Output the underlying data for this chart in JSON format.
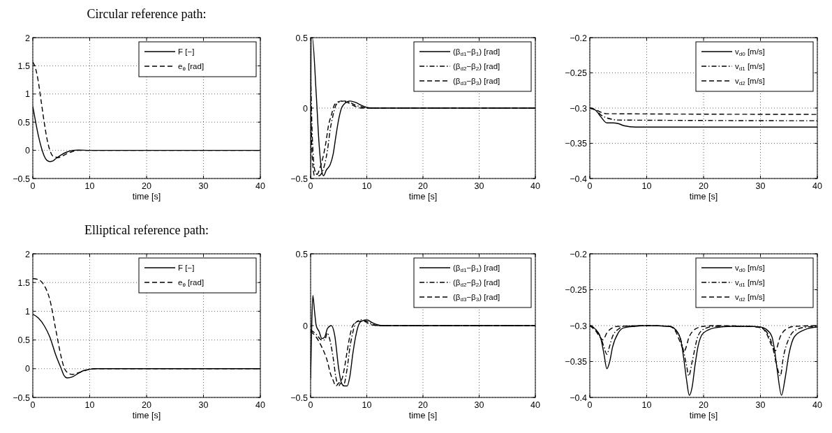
{
  "chart_data": [
    {
      "type": "line",
      "title": "Circular reference path:",
      "xlabel": "time [s]",
      "xlim": [
        0,
        40
      ],
      "xticks": [
        0,
        10,
        20,
        30,
        40
      ],
      "ylim": [
        -0.5,
        2
      ],
      "yticks": [
        -0.5,
        0,
        0.5,
        1,
        1.5,
        2
      ],
      "grid": true,
      "legend": "top right",
      "series": [
        {
          "name": "F [−]",
          "color": "#000000",
          "line_style": "solid",
          "x": [
            0,
            0.5,
            1,
            1.5,
            2,
            2.5,
            3,
            3.5,
            4,
            5,
            6,
            7,
            8,
            10,
            40
          ],
          "values": [
            0.78,
            0.5,
            0.25,
            0.05,
            -0.1,
            -0.18,
            -0.2,
            -0.19,
            -0.15,
            -0.08,
            -0.03,
            0,
            0.005,
            0,
            0
          ]
        },
        {
          "name": "e$_{θ}$ [rad]",
          "color": "#000000",
          "line_style": "dashed",
          "x": [
            0,
            0.5,
            1,
            1.5,
            2,
            2.5,
            3,
            3.5,
            4,
            4.5,
            5,
            6,
            7,
            8,
            40
          ],
          "values": [
            1.57,
            1.45,
            1.2,
            0.85,
            0.5,
            0.2,
            0,
            -0.1,
            -0.12,
            -0.13,
            -0.11,
            -0.06,
            -0.02,
            0,
            0
          ]
        }
      ]
    },
    {
      "type": "line",
      "xlabel": "time [s]",
      "xlim": [
        0,
        40
      ],
      "xticks": [
        0,
        10,
        20,
        30,
        40
      ],
      "ylim": [
        -0.5,
        0.5
      ],
      "yticks": [
        -0.5,
        0,
        0.5
      ],
      "grid": true,
      "legend": "top right",
      "series": [
        {
          "name": "(β$_{d1}$−β$_{1}$) [rad]",
          "color": "#000000",
          "line_style": "solid",
          "x": [
            0,
            0.1,
            0.3,
            1,
            1.5,
            2,
            2.3,
            2.8,
            3.5,
            4,
            4.5,
            5,
            5.5,
            6,
            7,
            8,
            9,
            10,
            11,
            40
          ],
          "values": [
            -0.5,
            0.5,
            0.5,
            0.1,
            -0.25,
            -0.45,
            -0.48,
            -0.44,
            -0.4,
            -0.33,
            -0.2,
            -0.08,
            0,
            0.03,
            0.05,
            0.04,
            0.02,
            0.005,
            0,
            0
          ]
        },
        {
          "name": "(β$_{d2}$−β$_{2}$) [rad]",
          "color": "#000000",
          "line_style": "dashdot",
          "x": [
            0,
            0.3,
            0.8,
            1.5,
            2,
            2.5,
            3,
            3.5,
            4,
            4.5,
            5,
            6,
            7,
            8,
            9,
            10,
            40
          ],
          "values": [
            0.3,
            -0.2,
            -0.45,
            -0.48,
            -0.46,
            -0.4,
            -0.3,
            -0.15,
            -0.05,
            0.02,
            0.04,
            0.05,
            0.04,
            0.02,
            0.01,
            0,
            0
          ]
        },
        {
          "name": "(β$_{d3}$−β$_{3}$) [rad]",
          "color": "#000000",
          "line_style": "dashed",
          "x": [
            0,
            0.3,
            0.7,
            1.2,
            1.7,
            2.2,
            2.7,
            3.2,
            3.7,
            4.2,
            4.7,
            5.5,
            6.5,
            7.5,
            9,
            40
          ],
          "values": [
            0.1,
            -0.35,
            -0.48,
            -0.47,
            -0.42,
            -0.35,
            -0.25,
            -0.12,
            -0.05,
            0.02,
            0.04,
            0.05,
            0.04,
            0.02,
            0,
            0
          ]
        }
      ]
    },
    {
      "type": "line",
      "xlabel": "time [s]",
      "xlim": [
        0,
        40
      ],
      "xticks": [
        0,
        10,
        20,
        30,
        40
      ],
      "ylim": [
        -0.4,
        -0.2
      ],
      "yticks": [
        -0.4,
        -0.35,
        -0.3,
        -0.25,
        -0.2
      ],
      "grid": true,
      "legend": "top right",
      "series": [
        {
          "name": "v$_{d0}$ [m/s]",
          "color": "#000000",
          "line_style": "solid",
          "x": [
            0,
            1,
            2,
            3,
            4,
            5,
            6,
            8,
            40
          ],
          "values": [
            -0.3,
            -0.303,
            -0.313,
            -0.321,
            -0.321,
            -0.322,
            -0.325,
            -0.327,
            -0.327
          ]
        },
        {
          "name": "v$_{d1}$ [m/s]",
          "color": "#000000",
          "line_style": "dashdot",
          "x": [
            0,
            1,
            2,
            3,
            4,
            5,
            40
          ],
          "values": [
            -0.3,
            -0.303,
            -0.31,
            -0.314,
            -0.316,
            -0.317,
            -0.318
          ]
        },
        {
          "name": "v$_{d2}$ [m/s]",
          "color": "#000000",
          "line_style": "dashed",
          "x": [
            0,
            1,
            2,
            3,
            40
          ],
          "values": [
            -0.3,
            -0.302,
            -0.306,
            -0.308,
            -0.309
          ]
        }
      ]
    },
    {
      "type": "line",
      "title": "Elliptical reference path:",
      "xlabel": "time [s]",
      "xlim": [
        0,
        40
      ],
      "xticks": [
        0,
        10,
        20,
        30,
        40
      ],
      "ylim": [
        -0.5,
        2
      ],
      "yticks": [
        -0.5,
        0,
        0.5,
        1,
        1.5,
        2
      ],
      "grid": true,
      "legend": "top right",
      "series": [
        {
          "name": "F [−]",
          "color": "#000000",
          "line_style": "solid",
          "x": [
            0,
            1,
            2,
            3,
            4,
            5,
            5.5,
            6,
            7,
            8,
            9,
            10,
            11,
            40
          ],
          "values": [
            0.95,
            0.88,
            0.75,
            0.55,
            0.25,
            0,
            -0.12,
            -0.16,
            -0.14,
            -0.08,
            -0.03,
            -0.01,
            0,
            0
          ]
        },
        {
          "name": "e$_{θ}$ [rad]",
          "color": "#000000",
          "line_style": "dashed",
          "x": [
            0,
            1,
            2,
            3,
            4,
            5,
            5.5,
            6,
            7,
            8,
            9,
            10,
            11,
            40
          ],
          "values": [
            1.57,
            1.55,
            1.45,
            1.2,
            0.7,
            0.2,
            0.02,
            -0.06,
            -0.1,
            -0.07,
            -0.04,
            -0.01,
            0,
            0
          ]
        }
      ]
    },
    {
      "type": "line",
      "xlabel": "time [s]",
      "xlim": [
        0,
        40
      ],
      "xticks": [
        0,
        10,
        20,
        30,
        40
      ],
      "ylim": [
        -0.5,
        0.5
      ],
      "yticks": [
        -0.5,
        0,
        0.5
      ],
      "grid": true,
      "legend": "top right",
      "series": [
        {
          "name": "(β$_{d1}$−β$_{1}$) [rad]",
          "color": "#000000",
          "line_style": "solid",
          "x": [
            0,
            0.2,
            0.4,
            0.7,
            1,
            1.5,
            2,
            2.5,
            3,
            3.7,
            4.3,
            5,
            5.5,
            6,
            6.5,
            7,
            7.5,
            8,
            8.5,
            9,
            10,
            11,
            12,
            13,
            40
          ],
          "values": [
            -0.37,
            0,
            0.21,
            0.1,
            0,
            -0.04,
            -0.09,
            -0.08,
            -0.02,
            0,
            -0.07,
            -0.3,
            -0.4,
            -0.42,
            -0.42,
            -0.35,
            -0.2,
            -0.08,
            0,
            0.03,
            0.04,
            0.02,
            0.005,
            0,
            0
          ]
        },
        {
          "name": "(β$_{d2}$−β$_{2}$) [rad]",
          "color": "#000000",
          "line_style": "dashdot",
          "x": [
            0,
            1,
            2,
            2.5,
            3,
            3.3,
            4,
            4.5,
            5,
            5.4,
            5.8,
            6.5,
            7,
            7.5,
            8,
            9,
            10,
            11,
            12,
            40
          ],
          "values": [
            -0.03,
            -0.06,
            -0.1,
            -0.1,
            -0.05,
            -0.08,
            -0.22,
            -0.36,
            -0.42,
            -0.4,
            -0.42,
            -0.3,
            -0.15,
            -0.05,
            0.02,
            0.04,
            0.03,
            0.01,
            0,
            0
          ]
        },
        {
          "name": "(β$_{d3}$−β$_{3}$) [rad]",
          "color": "#000000",
          "line_style": "dashed",
          "x": [
            0,
            1,
            2,
            3,
            3.5,
            4,
            4.5,
            5,
            5.5,
            6,
            6.5,
            7,
            7.5,
            8.5,
            9.5,
            10.5,
            12,
            40
          ],
          "values": [
            -0.04,
            -0.08,
            -0.15,
            -0.25,
            -0.33,
            -0.38,
            -0.42,
            -0.4,
            -0.38,
            -0.3,
            -0.18,
            -0.07,
            0,
            0.03,
            0.03,
            0.01,
            0,
            0
          ]
        }
      ]
    },
    {
      "type": "line",
      "xlabel": "time [s]",
      "xlim": [
        0,
        40
      ],
      "xticks": [
        0,
        10,
        20,
        30,
        40
      ],
      "ylim": [
        -0.4,
        -0.2
      ],
      "yticks": [
        -0.4,
        -0.35,
        -0.3,
        -0.25,
        -0.2
      ],
      "grid": true,
      "legend": "top right",
      "series": [
        {
          "name": "v$_{d0}$ [m/s]",
          "color": "#000000",
          "line_style": "solid",
          "x": [
            0,
            1,
            2,
            2.5,
            3,
            3.5,
            4,
            5,
            6,
            8,
            10,
            14,
            15,
            16,
            16.5,
            17,
            17.5,
            18,
            18.5,
            19,
            20,
            22,
            25,
            28,
            30,
            31,
            32,
            32.5,
            33,
            33.7,
            34.3,
            35,
            36,
            38,
            40
          ],
          "values": [
            -0.3,
            -0.305,
            -0.32,
            -0.34,
            -0.36,
            -0.35,
            -0.33,
            -0.31,
            -0.303,
            -0.301,
            -0.3,
            -0.301,
            -0.305,
            -0.32,
            -0.345,
            -0.375,
            -0.397,
            -0.385,
            -0.355,
            -0.33,
            -0.31,
            -0.303,
            -0.301,
            -0.301,
            -0.302,
            -0.305,
            -0.315,
            -0.335,
            -0.365,
            -0.397,
            -0.375,
            -0.34,
            -0.315,
            -0.305,
            -0.302
          ]
        },
        {
          "name": "v$_{d1}$ [m/s]",
          "color": "#000000",
          "line_style": "dashdot",
          "x": [
            0,
            1,
            2,
            2.5,
            3,
            3.5,
            4,
            5,
            6,
            10,
            14,
            15,
            16,
            17,
            17.4,
            18,
            19,
            20,
            22,
            28,
            30,
            31,
            32,
            33,
            33.5,
            34,
            35,
            36,
            38,
            40
          ],
          "values": [
            -0.3,
            -0.305,
            -0.318,
            -0.33,
            -0.34,
            -0.328,
            -0.315,
            -0.305,
            -0.301,
            -0.3,
            -0.301,
            -0.305,
            -0.32,
            -0.355,
            -0.37,
            -0.35,
            -0.315,
            -0.305,
            -0.301,
            -0.301,
            -0.303,
            -0.308,
            -0.325,
            -0.36,
            -0.37,
            -0.345,
            -0.318,
            -0.307,
            -0.302,
            -0.301
          ]
        },
        {
          "name": "v$_{d2}$ [m/s]",
          "color": "#000000",
          "line_style": "dashed",
          "x": [
            0,
            1,
            2,
            2.3,
            3,
            4,
            5,
            10,
            14,
            15,
            16,
            16.6,
            17.5,
            18.5,
            20,
            22,
            30,
            31,
            32,
            32.6,
            33.5,
            34.5,
            36,
            40
          ],
          "values": [
            -0.3,
            -0.307,
            -0.318,
            -0.32,
            -0.31,
            -0.303,
            -0.301,
            -0.3,
            -0.301,
            -0.307,
            -0.325,
            -0.335,
            -0.315,
            -0.305,
            -0.301,
            -0.3,
            -0.302,
            -0.31,
            -0.328,
            -0.335,
            -0.315,
            -0.305,
            -0.301,
            -0.3
          ]
        }
      ]
    }
  ]
}
